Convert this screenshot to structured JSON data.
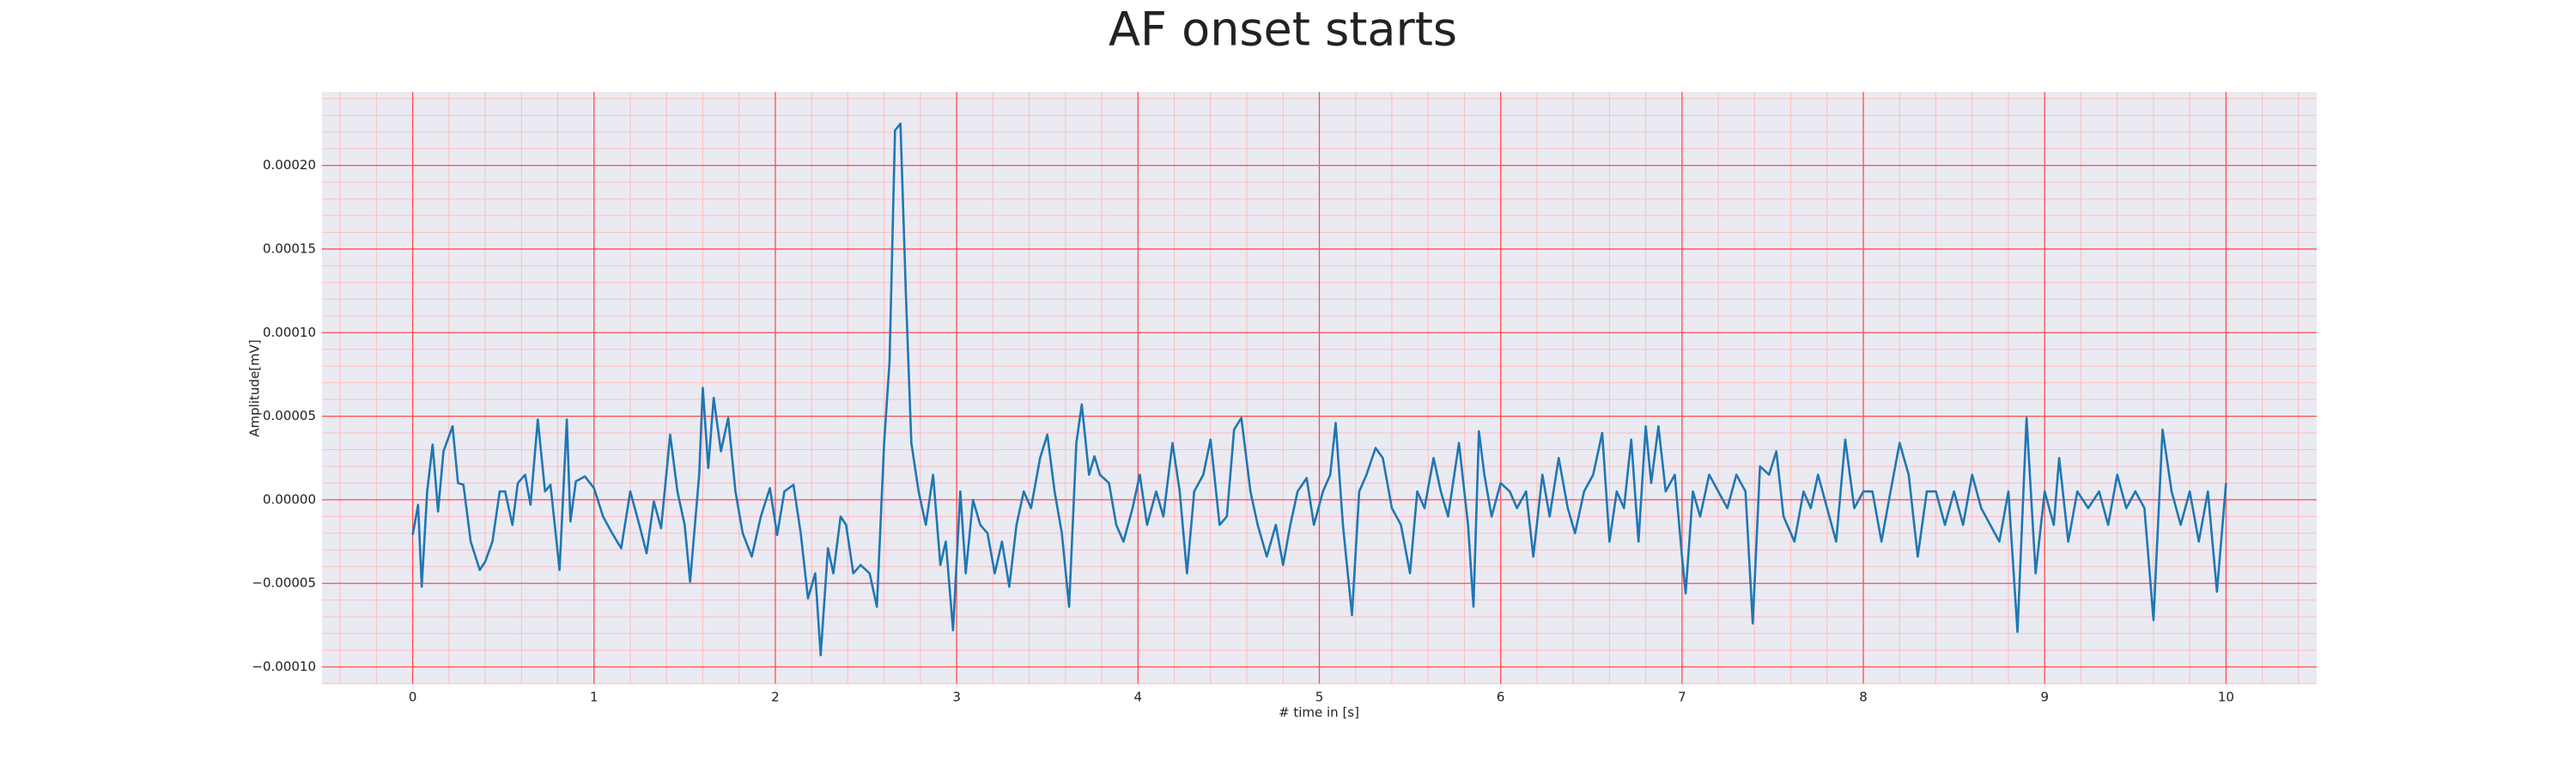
{
  "chart_data": {
    "type": "line",
    "title": "AF onset starts",
    "x_label": "# time in [s]",
    "y_label": "Amplitude[mV]",
    "color": "#1f77b4",
    "grid": true,
    "minor_grid": true,
    "grid_color": "#ff4d4d",
    "minor_grid_color": "#ffbcbc",
    "xlim": [
      -0.5,
      10.5
    ],
    "ylim": [
      -0.00011,
      0.000244
    ],
    "xticks": [
      0,
      1,
      2,
      3,
      4,
      5,
      6,
      7,
      8,
      9,
      10
    ],
    "yticks": [
      {
        "value": -0.0001,
        "label": "−0.00010"
      },
      {
        "value": -5e-05,
        "label": "−0.00005"
      },
      {
        "value": 0,
        "label": "0.00000"
      },
      {
        "value": 5e-05,
        "label": "0.00005"
      },
      {
        "value": 0.0001,
        "label": "0.00010"
      },
      {
        "value": 0.00015,
        "label": "0.00015"
      },
      {
        "value": 0.0002,
        "label": "0.00020"
      }
    ],
    "x": [
      0.0,
      0.03,
      0.05,
      0.08,
      0.11,
      0.14,
      0.17,
      0.22,
      0.25,
      0.28,
      0.32,
      0.37,
      0.4,
      0.44,
      0.48,
      0.51,
      0.55,
      0.58,
      0.62,
      0.65,
      0.69,
      0.73,
      0.76,
      0.81,
      0.85,
      0.87,
      0.9,
      0.95,
      1.0,
      1.05,
      1.1,
      1.15,
      1.2,
      1.25,
      1.29,
      1.33,
      1.37,
      1.42,
      1.46,
      1.5,
      1.53,
      1.58,
      1.6,
      1.63,
      1.66,
      1.7,
      1.74,
      1.78,
      1.82,
      1.87,
      1.92,
      1.97,
      2.01,
      2.05,
      2.1,
      2.14,
      2.18,
      2.22,
      2.25,
      2.29,
      2.32,
      2.36,
      2.39,
      2.43,
      2.47,
      2.52,
      2.56,
      2.6,
      2.63,
      2.66,
      2.69,
      2.72,
      2.75,
      2.79,
      2.83,
      2.87,
      2.91,
      2.94,
      2.98,
      3.02,
      3.05,
      3.09,
      3.13,
      3.17,
      3.21,
      3.25,
      3.29,
      3.33,
      3.37,
      3.41,
      3.46,
      3.5,
      3.54,
      3.58,
      3.62,
      3.66,
      3.69,
      3.73,
      3.76,
      3.79,
      3.84,
      3.88,
      3.92,
      3.97,
      4.01,
      4.05,
      4.1,
      4.14,
      4.19,
      4.23,
      4.27,
      4.31,
      4.36,
      4.4,
      4.45,
      4.49,
      4.53,
      4.57,
      4.62,
      4.66,
      4.71,
      4.76,
      4.8,
      4.84,
      4.88,
      4.93,
      4.97,
      5.02,
      5.06,
      5.09,
      5.13,
      5.18,
      5.22,
      5.26,
      5.31,
      5.35,
      5.4,
      5.45,
      5.5,
      5.54,
      5.58,
      5.63,
      5.67,
      5.71,
      5.77,
      5.82,
      5.85,
      5.88,
      5.91,
      5.95,
      6.0,
      6.05,
      6.09,
      6.14,
      6.18,
      6.23,
      6.27,
      6.32,
      6.37,
      6.41,
      6.46,
      6.51,
      6.56,
      6.6,
      6.64,
      6.68,
      6.72,
      6.76,
      6.8,
      6.83,
      6.87,
      6.91,
      6.96,
      7.0,
      7.02,
      7.06,
      7.1,
      7.15,
      7.2,
      7.25,
      7.3,
      7.35,
      7.39,
      7.43,
      7.48,
      7.52,
      7.56,
      7.62,
      7.67,
      7.71,
      7.75,
      7.8,
      7.85,
      7.9,
      7.95,
      8.0,
      8.05,
      8.1,
      8.15,
      8.2,
      8.25,
      8.3,
      8.35,
      8.4,
      8.45,
      8.5,
      8.55,
      8.6,
      8.65,
      8.7,
      8.75,
      8.8,
      8.85,
      8.9,
      8.95,
      9.0,
      9.05,
      9.08,
      9.13,
      9.18,
      9.24,
      9.3,
      9.35,
      9.4,
      9.45,
      9.5,
      9.55,
      9.6,
      9.65,
      9.7,
      9.75,
      9.8,
      9.85,
      9.9,
      9.95,
      10.0
    ],
    "values": [
      -2.1e-05,
      -3e-06,
      -5.2e-05,
      5e-06,
      3.3e-05,
      -7e-06,
      2.9e-05,
      4.4e-05,
      1e-05,
      9e-06,
      -2.5e-05,
      -4.2e-05,
      -3.7e-05,
      -2.5e-05,
      5e-06,
      5e-06,
      -1.5e-05,
      1e-05,
      1.5e-05,
      -3e-06,
      4.8e-05,
      5e-06,
      9e-06,
      -4.2e-05,
      4.8e-05,
      -1.3e-05,
      1.1e-05,
      1.4e-05,
      7e-06,
      -1e-05,
      -2e-05,
      -2.9e-05,
      5e-06,
      -1.5e-05,
      -3.2e-05,
      -1e-06,
      -1.7e-05,
      3.9e-05,
      5e-06,
      -1.5e-05,
      -4.9e-05,
      1.5e-05,
      6.7e-05,
      1.9e-05,
      6.1e-05,
      2.9e-05,
      4.9e-05,
      5e-06,
      -2e-05,
      -3.4e-05,
      -1e-05,
      7e-06,
      -2.1e-05,
      5e-06,
      9e-06,
      -2e-05,
      -5.9e-05,
      -4.4e-05,
      -9.3e-05,
      -2.9e-05,
      -4.4e-05,
      -1e-05,
      -1.5e-05,
      -4.4e-05,
      -3.9e-05,
      -4.4e-05,
      -6.4e-05,
      3.4e-05,
      8.3e-05,
      0.000221,
      0.000225,
      0.000123,
      3.4e-05,
      5e-06,
      -1.5e-05,
      1.5e-05,
      -3.9e-05,
      -2.5e-05,
      -7.8e-05,
      5e-06,
      -4.4e-05,
      0,
      -1.5e-05,
      -2e-05,
      -4.4e-05,
      -2.5e-05,
      -5.2e-05,
      -1.5e-05,
      5e-06,
      -5e-06,
      2.5e-05,
      3.9e-05,
      5e-06,
      -2e-05,
      -6.4e-05,
      3.4e-05,
      5.7e-05,
      1.5e-05,
      2.6e-05,
      1.5e-05,
      1e-05,
      -1.5e-05,
      -2.5e-05,
      -5e-06,
      1.5e-05,
      -1.5e-05,
      5e-06,
      -1e-05,
      3.4e-05,
      5e-06,
      -4.4e-05,
      5e-06,
      1.5e-05,
      3.6e-05,
      -1.5e-05,
      -1e-05,
      4.2e-05,
      4.9e-05,
      5e-06,
      -1.5e-05,
      -3.4e-05,
      -1.5e-05,
      -3.9e-05,
      -1.5e-05,
      5e-06,
      1.3e-05,
      -1.5e-05,
      5e-06,
      1.5e-05,
      4.6e-05,
      -1.5e-05,
      -6.9e-05,
      5e-06,
      1.5e-05,
      3.1e-05,
      2.5e-05,
      -5e-06,
      -1.5e-05,
      -4.4e-05,
      5e-06,
      -5e-06,
      2.5e-05,
      5e-06,
      -1e-05,
      3.4e-05,
      -1.5e-05,
      -6.4e-05,
      4.1e-05,
      1.5e-05,
      -1e-05,
      1e-05,
      5e-06,
      -5e-06,
      5e-06,
      -3.4e-05,
      1.5e-05,
      -1e-05,
      2.5e-05,
      -5e-06,
      -2e-05,
      5e-06,
      1.5e-05,
      4e-05,
      -2.5e-05,
      5e-06,
      -5e-06,
      3.6e-05,
      -2.5e-05,
      4.4e-05,
      1e-05,
      4.4e-05,
      5e-06,
      1.5e-05,
      -3.4e-05,
      -5.6e-05,
      5e-06,
      -1e-05,
      1.5e-05,
      5e-06,
      -5e-06,
      1.5e-05,
      5e-06,
      -7.4e-05,
      2e-05,
      1.5e-05,
      2.9e-05,
      -1e-05,
      -2.5e-05,
      5e-06,
      -5e-06,
      1.5e-05,
      -5e-06,
      -2.5e-05,
      3.6e-05,
      -5e-06,
      5e-06,
      5e-06,
      -2.5e-05,
      5e-06,
      3.4e-05,
      1.5e-05,
      -3.4e-05,
      5e-06,
      5e-06,
      -1.5e-05,
      5e-06,
      -1.5e-05,
      1.5e-05,
      -5e-06,
      -1.5e-05,
      -2.5e-05,
      5e-06,
      -7.9e-05,
      4.9e-05,
      -4.4e-05,
      5e-06,
      -1.5e-05,
      2.5e-05,
      -2.5e-05,
      5e-06,
      -5e-06,
      5e-06,
      -1.5e-05,
      1.5e-05,
      -5e-06,
      5e-06,
      -5e-06,
      -7.2e-05,
      4.2e-05,
      5e-06,
      -1.5e-05,
      5e-06,
      -2.5e-05,
      5e-06,
      -5.5e-05,
      1e-05
    ]
  }
}
